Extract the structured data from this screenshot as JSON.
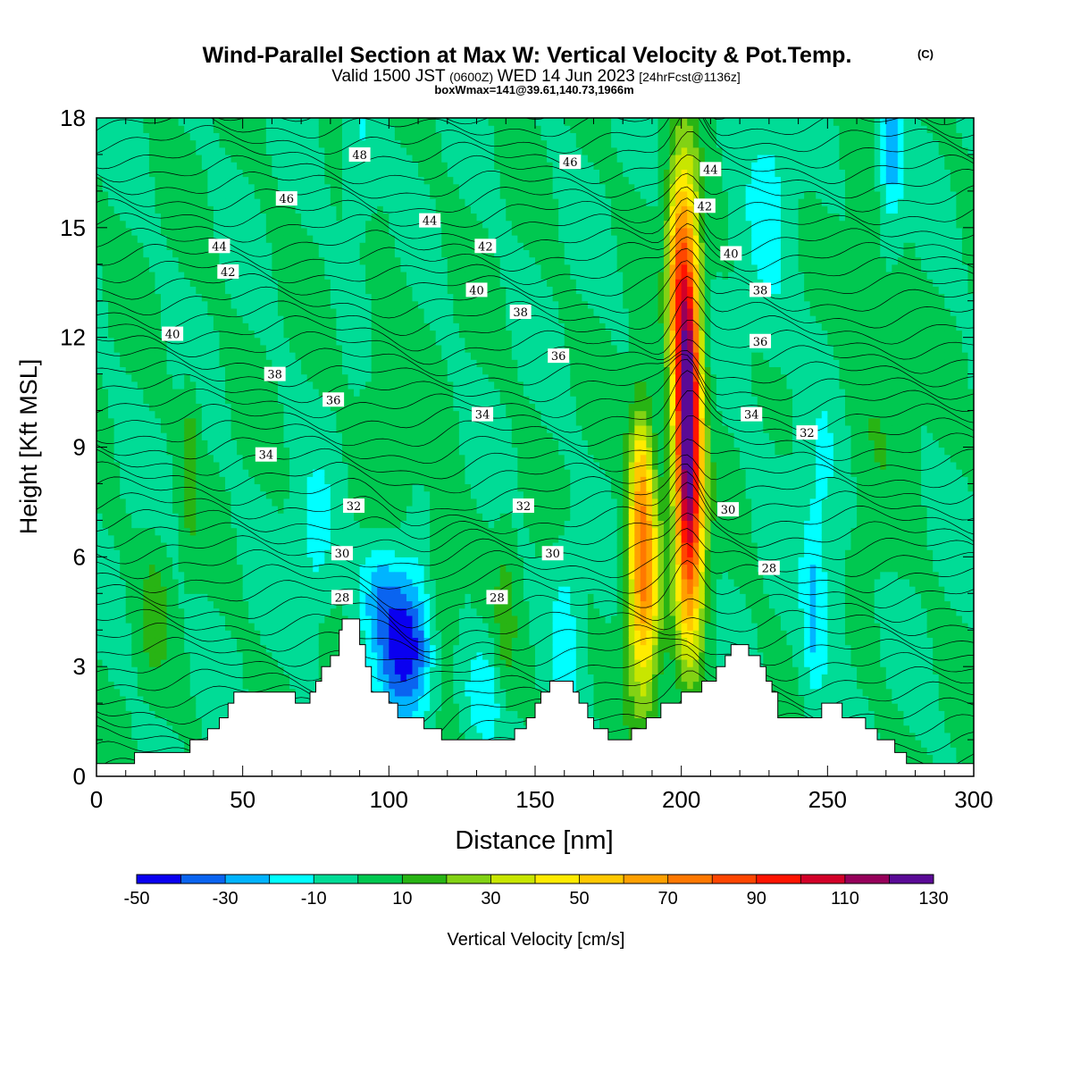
{
  "title": {
    "main": "Wind-Parallel Section at Max W: Vertical Velocity & Pot.Temp.",
    "copyright": "(C)",
    "valid_prefix": "Valid 1500 JST",
    "valid_utc": "(0600Z)",
    "valid_date": "WED 14 Jun 2023",
    "forecast": "[24hrFcst@1136z]",
    "boxwmax": "boxWmax=141@39.61,140.73,1966m"
  },
  "chart_data": {
    "type": "heatmap",
    "xlabel": "Distance [nm]",
    "ylabel": "Height [Kft MSL]",
    "xlim": [
      0,
      300
    ],
    "ylim": [
      0,
      18
    ],
    "x_ticks": [
      0,
      50,
      100,
      150,
      200,
      250,
      300
    ],
    "y_ticks": [
      0,
      3,
      6,
      9,
      12,
      15,
      18
    ],
    "colorbar": {
      "label": "Vertical Velocity [cm/s]",
      "levels": [
        -50,
        -40,
        -30,
        -20,
        -10,
        0,
        10,
        20,
        30,
        40,
        50,
        60,
        70,
        80,
        90,
        100,
        110,
        120,
        130
      ],
      "tick_labels": [
        "-50",
        "-30",
        "-10",
        "10",
        "30",
        "50",
        "70",
        "90",
        "110",
        "130"
      ],
      "colors": [
        "#0a00f0",
        "#0a64f0",
        "#00b4ff",
        "#00ffff",
        "#00dc96",
        "#00c850",
        "#28b414",
        "#82d214",
        "#c8e600",
        "#ffeb00",
        "#ffc800",
        "#ffa000",
        "#ff7800",
        "#ff4600",
        "#ff1400",
        "#d20028",
        "#96005a",
        "#5a0a96"
      ]
    },
    "terrain": [
      [
        0,
        0.35
      ],
      [
        13,
        0.35
      ],
      [
        13,
        0.65
      ],
      [
        32,
        0.65
      ],
      [
        32,
        1.0
      ],
      [
        38,
        1.0
      ],
      [
        38,
        1.3
      ],
      [
        42,
        1.3
      ],
      [
        42,
        1.6
      ],
      [
        45,
        1.6
      ],
      [
        45,
        2.0
      ],
      [
        47,
        2.0
      ],
      [
        47,
        2.3
      ],
      [
        68,
        2.3
      ],
      [
        68,
        2.0
      ],
      [
        73,
        2.0
      ],
      [
        73,
        2.3
      ],
      [
        75,
        2.3
      ],
      [
        75,
        2.6
      ],
      [
        77,
        2.6
      ],
      [
        77,
        3.0
      ],
      [
        80,
        3.0
      ],
      [
        80,
        3.3
      ],
      [
        83,
        3.3
      ],
      [
        83,
        4.0
      ],
      [
        84,
        4.0
      ],
      [
        84,
        4.3
      ],
      [
        90,
        4.3
      ],
      [
        90,
        3.6
      ],
      [
        92,
        3.6
      ],
      [
        92,
        3.0
      ],
      [
        94,
        3.0
      ],
      [
        94,
        2.3
      ],
      [
        100,
        2.3
      ],
      [
        100,
        2.0
      ],
      [
        103,
        2.0
      ],
      [
        103,
        1.6
      ],
      [
        112,
        1.6
      ],
      [
        112,
        1.3
      ],
      [
        118,
        1.3
      ],
      [
        118,
        1.0
      ],
      [
        143,
        1.0
      ],
      [
        143,
        1.3
      ],
      [
        147,
        1.3
      ],
      [
        147,
        1.6
      ],
      [
        150,
        1.6
      ],
      [
        150,
        2.0
      ],
      [
        152,
        2.0
      ],
      [
        152,
        2.3
      ],
      [
        155,
        2.3
      ],
      [
        155,
        2.6
      ],
      [
        163,
        2.6
      ],
      [
        163,
        2.3
      ],
      [
        165,
        2.3
      ],
      [
        165,
        2.0
      ],
      [
        168,
        2.0
      ],
      [
        168,
        1.6
      ],
      [
        170,
        1.6
      ],
      [
        170,
        1.3
      ],
      [
        175,
        1.3
      ],
      [
        175,
        1.0
      ],
      [
        183,
        1.0
      ],
      [
        183,
        1.3
      ],
      [
        188,
        1.3
      ],
      [
        188,
        1.6
      ],
      [
        193,
        1.6
      ],
      [
        193,
        2.0
      ],
      [
        200,
        2.0
      ],
      [
        200,
        2.3
      ],
      [
        207,
        2.3
      ],
      [
        207,
        2.6
      ],
      [
        212,
        2.6
      ],
      [
        212,
        3.0
      ],
      [
        215,
        3.0
      ],
      [
        215,
        3.3
      ],
      [
        217,
        3.3
      ],
      [
        217,
        3.6
      ],
      [
        223,
        3.6
      ],
      [
        223,
        3.3
      ],
      [
        227,
        3.3
      ],
      [
        227,
        3.0
      ],
      [
        229,
        3.0
      ],
      [
        229,
        2.6
      ],
      [
        231,
        2.6
      ],
      [
        231,
        2.3
      ],
      [
        233,
        2.3
      ],
      [
        233,
        1.6
      ],
      [
        248,
        1.6
      ],
      [
        248,
        2.0
      ],
      [
        255,
        2.0
      ],
      [
        255,
        1.6
      ],
      [
        263,
        1.6
      ],
      [
        263,
        1.3
      ],
      [
        267,
        1.3
      ],
      [
        267,
        1.0
      ],
      [
        273,
        1.0
      ],
      [
        273,
        0.65
      ],
      [
        277,
        0.65
      ],
      [
        277,
        0.35
      ],
      [
        300,
        0.35
      ]
    ],
    "contour_labels": [
      {
        "text": "48",
        "x": 90,
        "y": 17.0
      },
      {
        "text": "46",
        "x": 65,
        "y": 15.8
      },
      {
        "text": "46",
        "x": 162,
        "y": 16.8
      },
      {
        "text": "44",
        "x": 42,
        "y": 14.5
      },
      {
        "text": "44",
        "x": 114,
        "y": 15.2
      },
      {
        "text": "44",
        "x": 210,
        "y": 16.6
      },
      {
        "text": "42",
        "x": 45,
        "y": 13.8
      },
      {
        "text": "42",
        "x": 133,
        "y": 14.5
      },
      {
        "text": "42",
        "x": 208,
        "y": 15.6
      },
      {
        "text": "40",
        "x": 26,
        "y": 12.1
      },
      {
        "text": "40",
        "x": 130,
        "y": 13.3
      },
      {
        "text": "40",
        "x": 217,
        "y": 14.3
      },
      {
        "text": "38",
        "x": 61,
        "y": 11.0
      },
      {
        "text": "38",
        "x": 145,
        "y": 12.7
      },
      {
        "text": "38",
        "x": 227,
        "y": 13.3
      },
      {
        "text": "36",
        "x": 81,
        "y": 10.3
      },
      {
        "text": "36",
        "x": 158,
        "y": 11.5
      },
      {
        "text": "36",
        "x": 227,
        "y": 11.9
      },
      {
        "text": "34",
        "x": 58,
        "y": 8.8
      },
      {
        "text": "34",
        "x": 132,
        "y": 9.9
      },
      {
        "text": "34",
        "x": 224,
        "y": 9.9
      },
      {
        "text": "32",
        "x": 88,
        "y": 7.4
      },
      {
        "text": "32",
        "x": 146,
        "y": 7.4
      },
      {
        "text": "32",
        "x": 243,
        "y": 9.4
      },
      {
        "text": "30",
        "x": 84,
        "y": 6.1
      },
      {
        "text": "30",
        "x": 156,
        "y": 6.1
      },
      {
        "text": "30",
        "x": 216,
        "y": 7.3
      },
      {
        "text": "28",
        "x": 84,
        "y": 4.9
      },
      {
        "text": "28",
        "x": 137,
        "y": 4.9
      },
      {
        "text": "28",
        "x": 230,
        "y": 5.7
      }
    ]
  }
}
